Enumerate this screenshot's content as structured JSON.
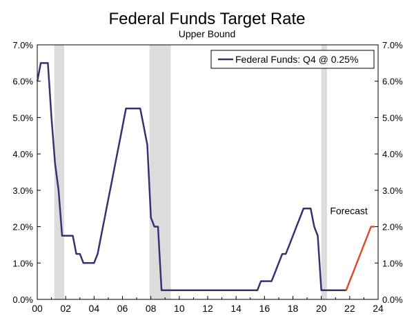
{
  "chart_data": {
    "type": "line",
    "title": "Federal Funds Target Rate",
    "subtitle": "Upper Bound",
    "xlabel": "",
    "ylabel": "",
    "xlim": [
      2000,
      2024
    ],
    "ylim": [
      0,
      7
    ],
    "x_ticks": [
      2000,
      2002,
      2004,
      2006,
      2008,
      2010,
      2012,
      2014,
      2016,
      2018,
      2020,
      2022,
      2024
    ],
    "x_tick_labels": [
      "00",
      "02",
      "04",
      "06",
      "08",
      "10",
      "12",
      "14",
      "16",
      "18",
      "20",
      "22",
      "24"
    ],
    "y_ticks": [
      0,
      1,
      2,
      3,
      4,
      5,
      6,
      7
    ],
    "y_tick_labels": [
      "0.0%",
      "1.0%",
      "2.0%",
      "3.0%",
      "4.0%",
      "5.0%",
      "6.0%",
      "7.0%"
    ],
    "secondary_y_axis": true,
    "legend": {
      "position": "top-right",
      "entries": [
        "Federal Funds: Q4 @ 0.25%"
      ]
    },
    "annotations": [
      {
        "text": "Forecast",
        "x": 2023.3,
        "y": 2.15
      }
    ],
    "recessions": [
      [
        2001.2,
        2001.9
      ],
      [
        2007.9,
        2009.4
      ],
      [
        2020.0,
        2020.4
      ]
    ],
    "colors": {
      "history": "#3a3070",
      "forecast": "#e04a2e",
      "recession": "#dcdcdc"
    },
    "series": [
      {
        "name": "Federal Funds: Q4 @ 0.25%",
        "x": [
          2000.0,
          2000.25,
          2000.5,
          2000.75,
          2001.0,
          2001.25,
          2001.5,
          2001.75,
          2002.0,
          2002.25,
          2002.5,
          2002.75,
          2003.0,
          2003.25,
          2003.5,
          2003.75,
          2004.0,
          2004.25,
          2004.5,
          2004.75,
          2005.0,
          2005.25,
          2005.5,
          2005.75,
          2006.0,
          2006.25,
          2006.5,
          2006.75,
          2007.0,
          2007.25,
          2007.5,
          2007.75,
          2008.0,
          2008.25,
          2008.5,
          2008.75,
          2009.0,
          2009.25,
          2015.5,
          2015.75,
          2016.0,
          2016.5,
          2016.75,
          2017.0,
          2017.25,
          2017.5,
          2017.75,
          2018.0,
          2018.25,
          2018.5,
          2018.75,
          2019.0,
          2019.25,
          2019.5,
          2019.75,
          2020.0,
          2020.25,
          2021.75
        ],
        "values": [
          6.0,
          6.5,
          6.5,
          6.5,
          5.0,
          3.75,
          3.0,
          1.75,
          1.75,
          1.75,
          1.75,
          1.25,
          1.25,
          1.0,
          1.0,
          1.0,
          1.0,
          1.25,
          1.75,
          2.25,
          2.75,
          3.25,
          3.75,
          4.25,
          4.75,
          5.25,
          5.25,
          5.25,
          5.25,
          5.25,
          4.75,
          4.25,
          2.25,
          2.0,
          2.0,
          0.25,
          0.25,
          0.25,
          0.25,
          0.5,
          0.5,
          0.5,
          0.75,
          1.0,
          1.25,
          1.25,
          1.5,
          1.75,
          2.0,
          2.25,
          2.5,
          2.5,
          2.5,
          2.0,
          1.75,
          0.25,
          0.25,
          0.25
        ]
      },
      {
        "name": "Forecast",
        "x": [
          2021.75,
          2022.0,
          2022.25,
          2022.5,
          2022.75,
          2023.0,
          2023.25,
          2023.5,
          2023.75
        ],
        "values": [
          0.25,
          0.5,
          0.75,
          1.0,
          1.25,
          1.5,
          1.75,
          2.0,
          2.0
        ]
      }
    ]
  }
}
